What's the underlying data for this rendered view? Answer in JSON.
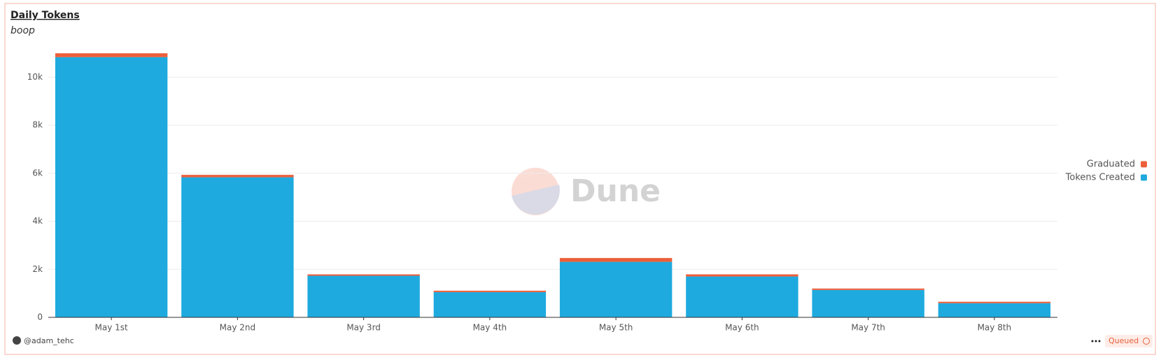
{
  "chart_data": {
    "type": "bar",
    "stacked": true,
    "title": "Daily Tokens",
    "subtitle": "boop",
    "watermark": "Dune",
    "author": "@adam_tehc",
    "status": "Queued",
    "categories": [
      "May 1st",
      "May 2nd",
      "May 3rd",
      "May 4th",
      "May 5th",
      "May 6th",
      "May 7th",
      "May 8th"
    ],
    "series": [
      {
        "name": "Tokens Created",
        "color": "#1eaadf",
        "values": [
          10830,
          5830,
          1730,
          1050,
          2310,
          1700,
          1140,
          590
        ]
      },
      {
        "name": "Graduated",
        "color": "#ec5f3a",
        "values": [
          160,
          100,
          60,
          60,
          160,
          90,
          60,
          60
        ]
      }
    ],
    "ylim": [
      0,
      11200
    ],
    "yticks": [
      0,
      {
        "value": 2000,
        "label": "2k"
      },
      {
        "value": 4000,
        "label": "4k"
      },
      {
        "value": 6000,
        "label": "6k"
      },
      {
        "value": 8000,
        "label": "8k"
      },
      {
        "value": 10000,
        "label": "10k"
      }
    ],
    "grid": true,
    "legend": "right"
  }
}
